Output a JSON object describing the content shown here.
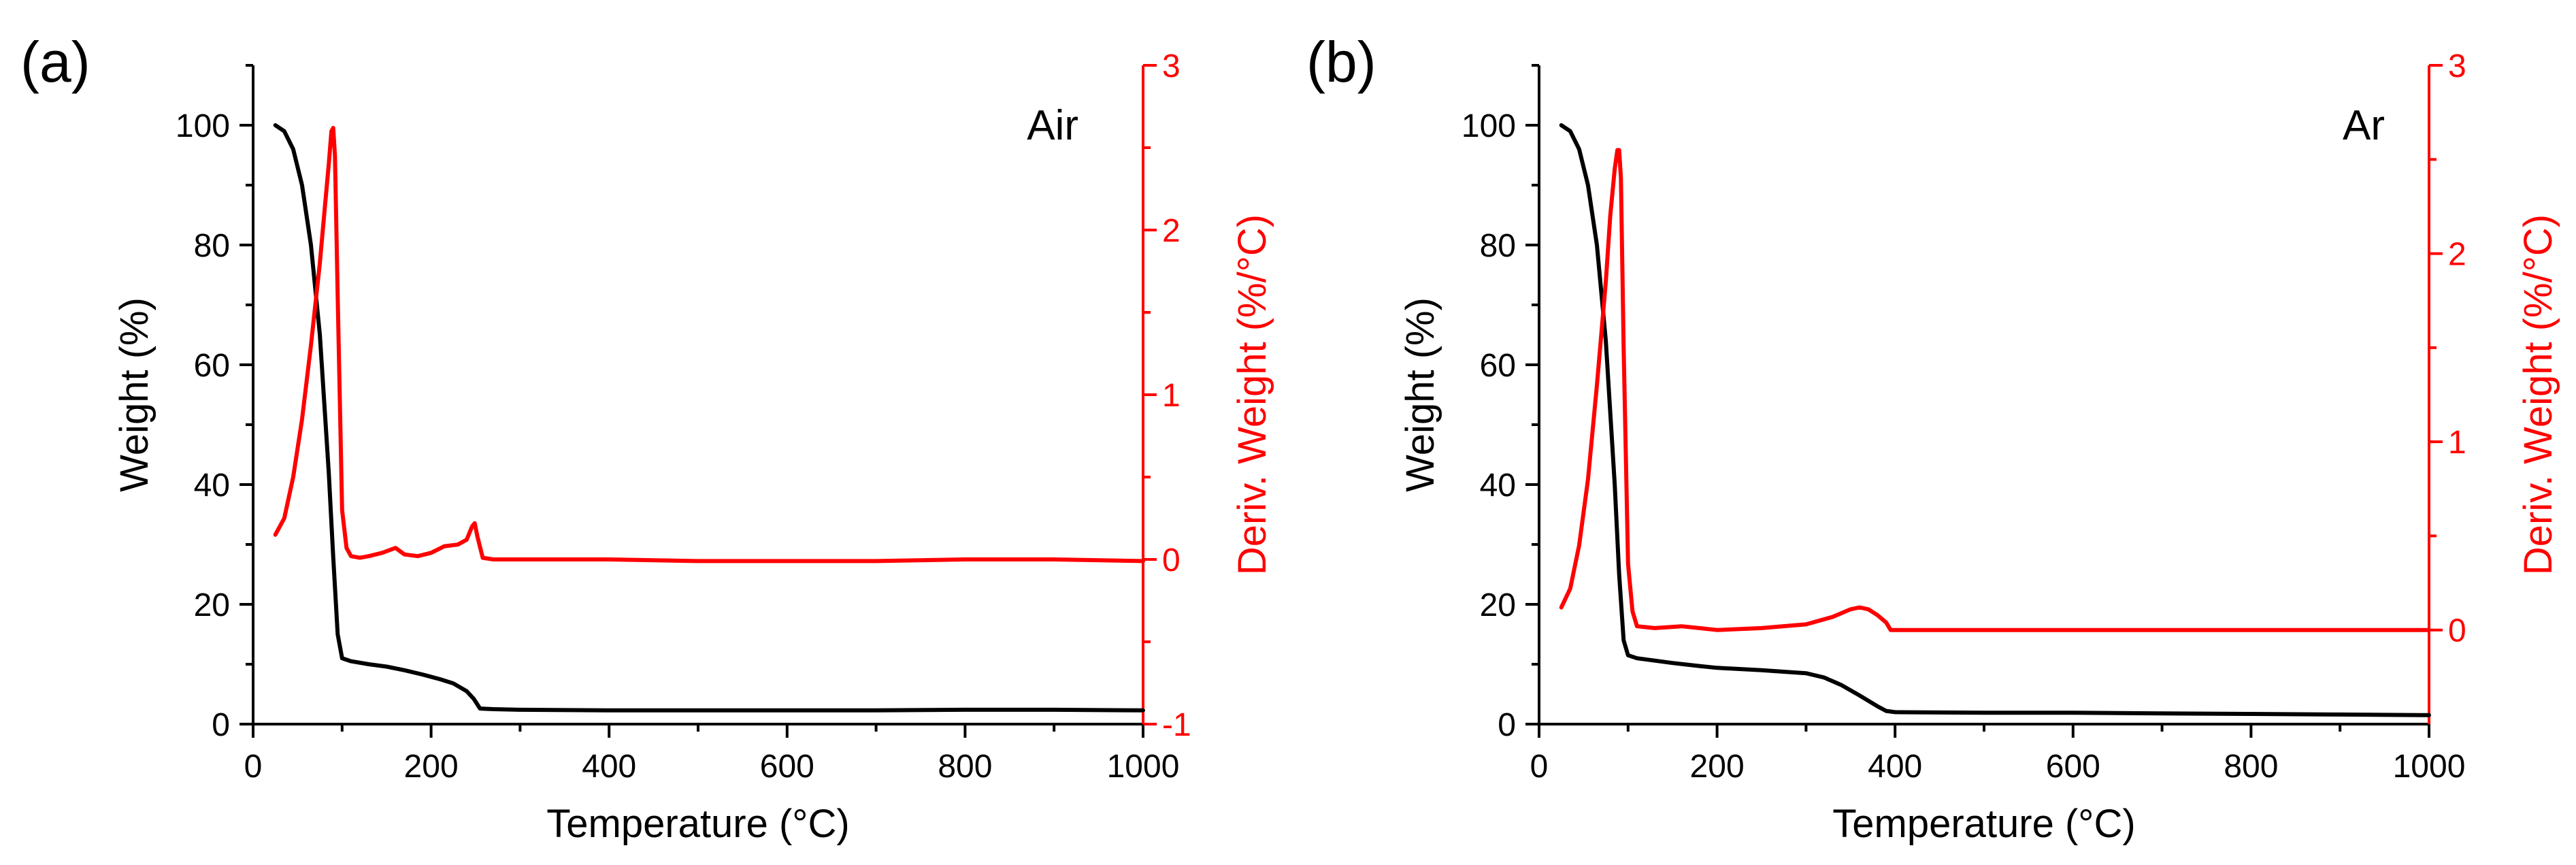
{
  "chart_data": [
    {
      "type": "line",
      "panel_label": "(a)",
      "annotation": "Air",
      "xlabel": "Temperature (°C)",
      "ylabel_left": "Weight (%)",
      "ylabel_right": "Deriv. Weight (%/°C)",
      "xlim": [
        0,
        1000
      ],
      "ylim_left": [
        0,
        110
      ],
      "ylim_right": [
        -1,
        3
      ],
      "x_ticks": [
        0,
        200,
        400,
        600,
        800,
        1000
      ],
      "y_left_ticks": [
        0,
        20,
        40,
        60,
        80,
        100
      ],
      "y_right_ticks": [
        -1,
        0,
        1,
        2,
        3
      ],
      "series": [
        {
          "name": "Weight",
          "axis": "left",
          "color": "#000000",
          "x": [
            25,
            35,
            45,
            55,
            65,
            75,
            85,
            90,
            95,
            100,
            110,
            130,
            150,
            170,
            190,
            210,
            225,
            240,
            248,
            255,
            270,
            300,
            400,
            500,
            600,
            700,
            800,
            900,
            1000
          ],
          "y": [
            100,
            99,
            96,
            90,
            80,
            65,
            42,
            28,
            15,
            11,
            10.5,
            10,
            9.6,
            9,
            8.3,
            7.5,
            6.8,
            5.5,
            4.2,
            2.6,
            2.5,
            2.4,
            2.3,
            2.3,
            2.3,
            2.3,
            2.4,
            2.4,
            2.3
          ]
        },
        {
          "name": "Deriv. Weight",
          "axis": "right",
          "color": "#ff0000",
          "x": [
            25,
            35,
            45,
            55,
            65,
            75,
            80,
            85,
            88,
            90,
            92,
            95,
            100,
            105,
            110,
            120,
            130,
            145,
            160,
            170,
            185,
            200,
            215,
            230,
            240,
            246,
            249,
            252,
            258,
            270,
            300,
            400,
            500,
            600,
            700,
            800,
            900,
            1000
          ],
          "y": [
            0.15,
            0.25,
            0.5,
            0.85,
            1.3,
            1.8,
            2.1,
            2.4,
            2.6,
            2.62,
            2.45,
            1.6,
            0.3,
            0.07,
            0.02,
            0.01,
            0.02,
            0.04,
            0.07,
            0.03,
            0.02,
            0.04,
            0.08,
            0.09,
            0.12,
            0.2,
            0.22,
            0.14,
            0.01,
            0,
            0,
            0,
            -0.01,
            -0.01,
            -0.01,
            0,
            0,
            -0.01
          ]
        }
      ]
    },
    {
      "type": "line",
      "panel_label": "(b)",
      "annotation": "Ar",
      "xlabel": "Temperature (°C)",
      "ylabel_left": "Weight (%)",
      "ylabel_right": "Deriv. Weight (%/°C)",
      "xlim": [
        0,
        1000
      ],
      "ylim_left": [
        0,
        110
      ],
      "ylim_right": [
        -0.5,
        3
      ],
      "x_ticks": [
        0,
        200,
        400,
        600,
        800,
        1000
      ],
      "y_left_ticks": [
        0,
        20,
        40,
        60,
        80,
        100
      ],
      "y_right_ticks": [
        0,
        1,
        2,
        3
      ],
      "series": [
        {
          "name": "Weight",
          "axis": "left",
          "color": "#000000",
          "x": [
            25,
            35,
            45,
            55,
            65,
            75,
            85,
            90,
            95,
            100,
            110,
            130,
            150,
            180,
            200,
            250,
            300,
            320,
            340,
            360,
            380,
            390,
            400,
            500,
            600,
            700,
            800,
            900,
            1000
          ],
          "y": [
            100,
            99,
            96,
            90,
            80,
            64,
            40,
            25,
            14,
            11.5,
            11,
            10.6,
            10.2,
            9.7,
            9.4,
            9,
            8.5,
            7.8,
            6.5,
            4.8,
            3.0,
            2.2,
            2.0,
            1.9,
            1.9,
            1.8,
            1.7,
            1.6,
            1.5
          ]
        },
        {
          "name": "Deriv. Weight",
          "axis": "right",
          "color": "#ff0000",
          "x": [
            25,
            35,
            45,
            55,
            65,
            75,
            80,
            85,
            88,
            90,
            92,
            95,
            100,
            105,
            110,
            130,
            160,
            180,
            200,
            250,
            300,
            330,
            350,
            360,
            370,
            380,
            390,
            395,
            400,
            450,
            500,
            600,
            700,
            800,
            900,
            1000
          ],
          "y": [
            0.12,
            0.22,
            0.45,
            0.8,
            1.3,
            1.85,
            2.2,
            2.45,
            2.55,
            2.55,
            2.4,
            1.5,
            0.35,
            0.1,
            0.02,
            0.01,
            0.02,
            0.01,
            0.0,
            0.01,
            0.03,
            0.07,
            0.11,
            0.12,
            0.11,
            0.08,
            0.04,
            0.0,
            0.0,
            0.0,
            0.0,
            0.0,
            0.0,
            0.0,
            0.0,
            0.0
          ]
        }
      ]
    }
  ]
}
